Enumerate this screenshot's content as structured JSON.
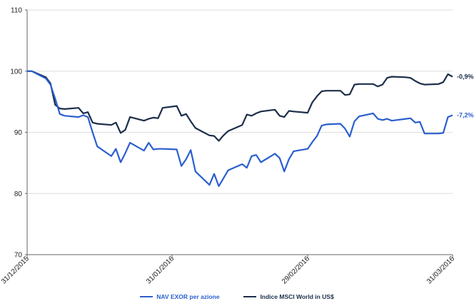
{
  "chart_data": {
    "type": "line",
    "title": "",
    "xlabel": "",
    "ylabel": "",
    "ylim": [
      70,
      110
    ],
    "y_ticks": [
      "70",
      "80",
      "90",
      "100",
      "110"
    ],
    "x_ticks": [
      "31/12/2015",
      "31/01/2016",
      "29/02/2016",
      "31/03/2016"
    ],
    "grid": "horizontal",
    "legend_position": "bottom",
    "x": [
      "2015-12-31",
      "2016-01-01",
      "2016-01-04",
      "2016-01-05",
      "2016-01-06",
      "2016-01-07",
      "2016-01-08",
      "2016-01-11",
      "2016-01-12",
      "2016-01-13",
      "2016-01-14",
      "2016-01-15",
      "2016-01-18",
      "2016-01-19",
      "2016-01-20",
      "2016-01-21",
      "2016-01-22",
      "2016-01-25",
      "2016-01-26",
      "2016-01-27",
      "2016-01-28",
      "2016-01-29",
      "2016-02-01",
      "2016-02-02",
      "2016-02-03",
      "2016-02-04",
      "2016-02-05",
      "2016-02-08",
      "2016-02-09",
      "2016-02-10",
      "2016-02-11",
      "2016-02-12",
      "2016-02-15",
      "2016-02-16",
      "2016-02-17",
      "2016-02-18",
      "2016-02-19",
      "2016-02-22",
      "2016-02-23",
      "2016-02-24",
      "2016-02-25",
      "2016-02-26",
      "2016-02-29",
      "2016-03-01",
      "2016-03-02",
      "2016-03-03",
      "2016-03-04",
      "2016-03-07",
      "2016-03-08",
      "2016-03-09",
      "2016-03-10",
      "2016-03-11",
      "2016-03-14",
      "2016-03-15",
      "2016-03-16",
      "2016-03-17",
      "2016-03-18",
      "2016-03-21",
      "2016-03-22",
      "2016-03-23",
      "2016-03-24",
      "2016-03-25",
      "2016-03-28",
      "2016-03-29",
      "2016-03-30",
      "2016-03-31"
    ],
    "series": [
      {
        "name": "NAV EXOR per azione",
        "color": "#2b5fcf",
        "end_label": "-7,2%",
        "values": [
          100,
          100,
          98.8,
          97.8,
          95.5,
          93,
          92.7,
          92.5,
          92.8,
          92.5,
          90,
          87.7,
          86.1,
          87.3,
          85.1,
          86.6,
          88.3,
          87,
          88.3,
          87.2,
          87.3,
          87.3,
          87.2,
          84.5,
          85.6,
          87.1,
          83.6,
          81.4,
          83.2,
          81.2,
          82.5,
          83.8,
          84.8,
          84.2,
          86.1,
          86.3,
          85.1,
          86.5,
          85.8,
          83.6,
          85.6,
          86.9,
          87.3,
          88.4,
          89.4,
          91.1,
          91.3,
          91.4,
          90.6,
          89.3,
          91.8,
          92.6,
          93.1,
          92.2,
          92,
          92.2,
          91.9,
          92.2,
          92.3,
          91.6,
          91.7,
          89.8,
          89.8,
          89.9,
          92.5,
          92.8
        ]
      },
      {
        "name": "Indice MSCI World in US$",
        "color": "#1c2e4a",
        "end_label": "-0,9%",
        "values": [
          100,
          100,
          99,
          98,
          94.5,
          93.9,
          93.8,
          94,
          93.1,
          93.3,
          91.6,
          91.4,
          91.2,
          91.6,
          89.9,
          90.4,
          92.5,
          91.9,
          92.2,
          92.4,
          92.3,
          94,
          94.3,
          92.7,
          93,
          91.8,
          90.7,
          89.5,
          89.4,
          88.6,
          89.5,
          90.2,
          91.2,
          92.9,
          92.7,
          93.1,
          93.4,
          93.7,
          92.7,
          92.5,
          93.5,
          93.4,
          93.2,
          94.9,
          95.9,
          96.7,
          96.8,
          96.8,
          96.1,
          96.2,
          97.8,
          97.9,
          97.9,
          97.5,
          97.8,
          98.9,
          99.1,
          99,
          98.9,
          98.4,
          98,
          97.8,
          97.9,
          98.2,
          99.5,
          99.1
        ]
      }
    ]
  },
  "legend": {
    "item1": "NAV EXOR per azione",
    "item2": "Indice MSCI World in US$"
  }
}
